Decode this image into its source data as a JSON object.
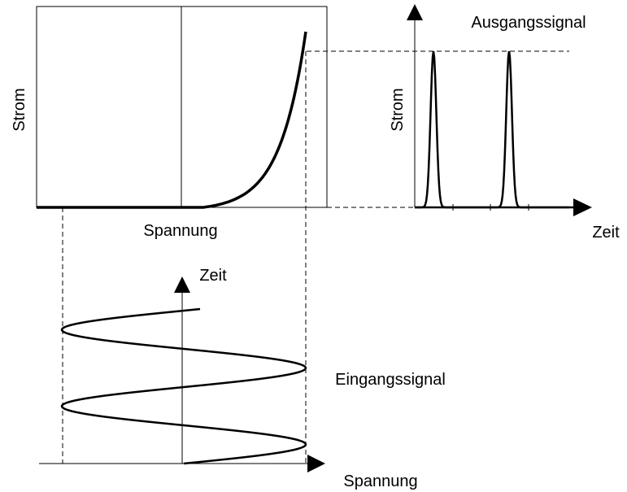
{
  "transfer_plot": {
    "y_label": "Strom",
    "x_label": "Spannung"
  },
  "output_plot": {
    "title": "Ausgangssignal",
    "y_label": "Strom",
    "x_label": "Zeit"
  },
  "input_plot": {
    "y_label": "Zeit",
    "title": "Eingangssignal",
    "x_label": "Spannung"
  }
}
